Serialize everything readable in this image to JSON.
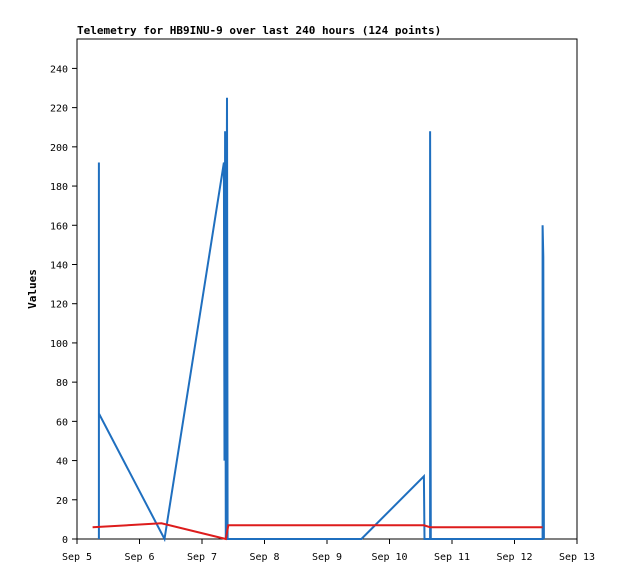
{
  "chart_data": {
    "type": "line",
    "title": "Telemetry for HB9INU-9 over last 240 hours (124 points)",
    "xlabel": "",
    "ylabel": "Values",
    "x_unit": "days (September)",
    "xlim": [
      5,
      13
    ],
    "ylim": [
      0,
      255
    ],
    "xticks": [
      {
        "value": 5,
        "label": "Sep 5"
      },
      {
        "value": 6,
        "label": "Sep 6"
      },
      {
        "value": 7,
        "label": "Sep 7"
      },
      {
        "value": 8,
        "label": "Sep 8"
      },
      {
        "value": 9,
        "label": "Sep 9"
      },
      {
        "value": 10,
        "label": "Sep 10"
      },
      {
        "value": 11,
        "label": "Sep 11"
      },
      {
        "value": 12,
        "label": "Sep 12"
      },
      {
        "value": 13,
        "label": "Sep 13"
      }
    ],
    "yticks": [
      0,
      20,
      40,
      60,
      80,
      100,
      120,
      140,
      160,
      180,
      200,
      220,
      240
    ],
    "grid": false,
    "legend": "none",
    "series": [
      {
        "color": "#1f6fbf",
        "points": [
          [
            5.35,
            0
          ],
          [
            5.35,
            192
          ],
          [
            5.35,
            64
          ],
          [
            6.4,
            0
          ],
          [
            7.35,
            192
          ],
          [
            7.36,
            40
          ],
          [
            7.37,
            208
          ],
          [
            7.38,
            0
          ],
          [
            7.4,
            225
          ],
          [
            7.41,
            0
          ],
          [
            9.55,
            0
          ],
          [
            10.55,
            32
          ],
          [
            10.56,
            0
          ],
          [
            10.65,
            0
          ],
          [
            10.65,
            208
          ],
          [
            10.66,
            0
          ],
          [
            12.45,
            0
          ],
          [
            12.45,
            160
          ],
          [
            12.46,
            144
          ],
          [
            12.47,
            0
          ]
        ]
      },
      {
        "color": "#dd1c1c",
        "points": [
          [
            5.25,
            6
          ],
          [
            6.35,
            8
          ],
          [
            7.38,
            0
          ],
          [
            7.42,
            7
          ],
          [
            10.55,
            7
          ],
          [
            10.65,
            6
          ],
          [
            12.45,
            6
          ]
        ]
      }
    ]
  }
}
